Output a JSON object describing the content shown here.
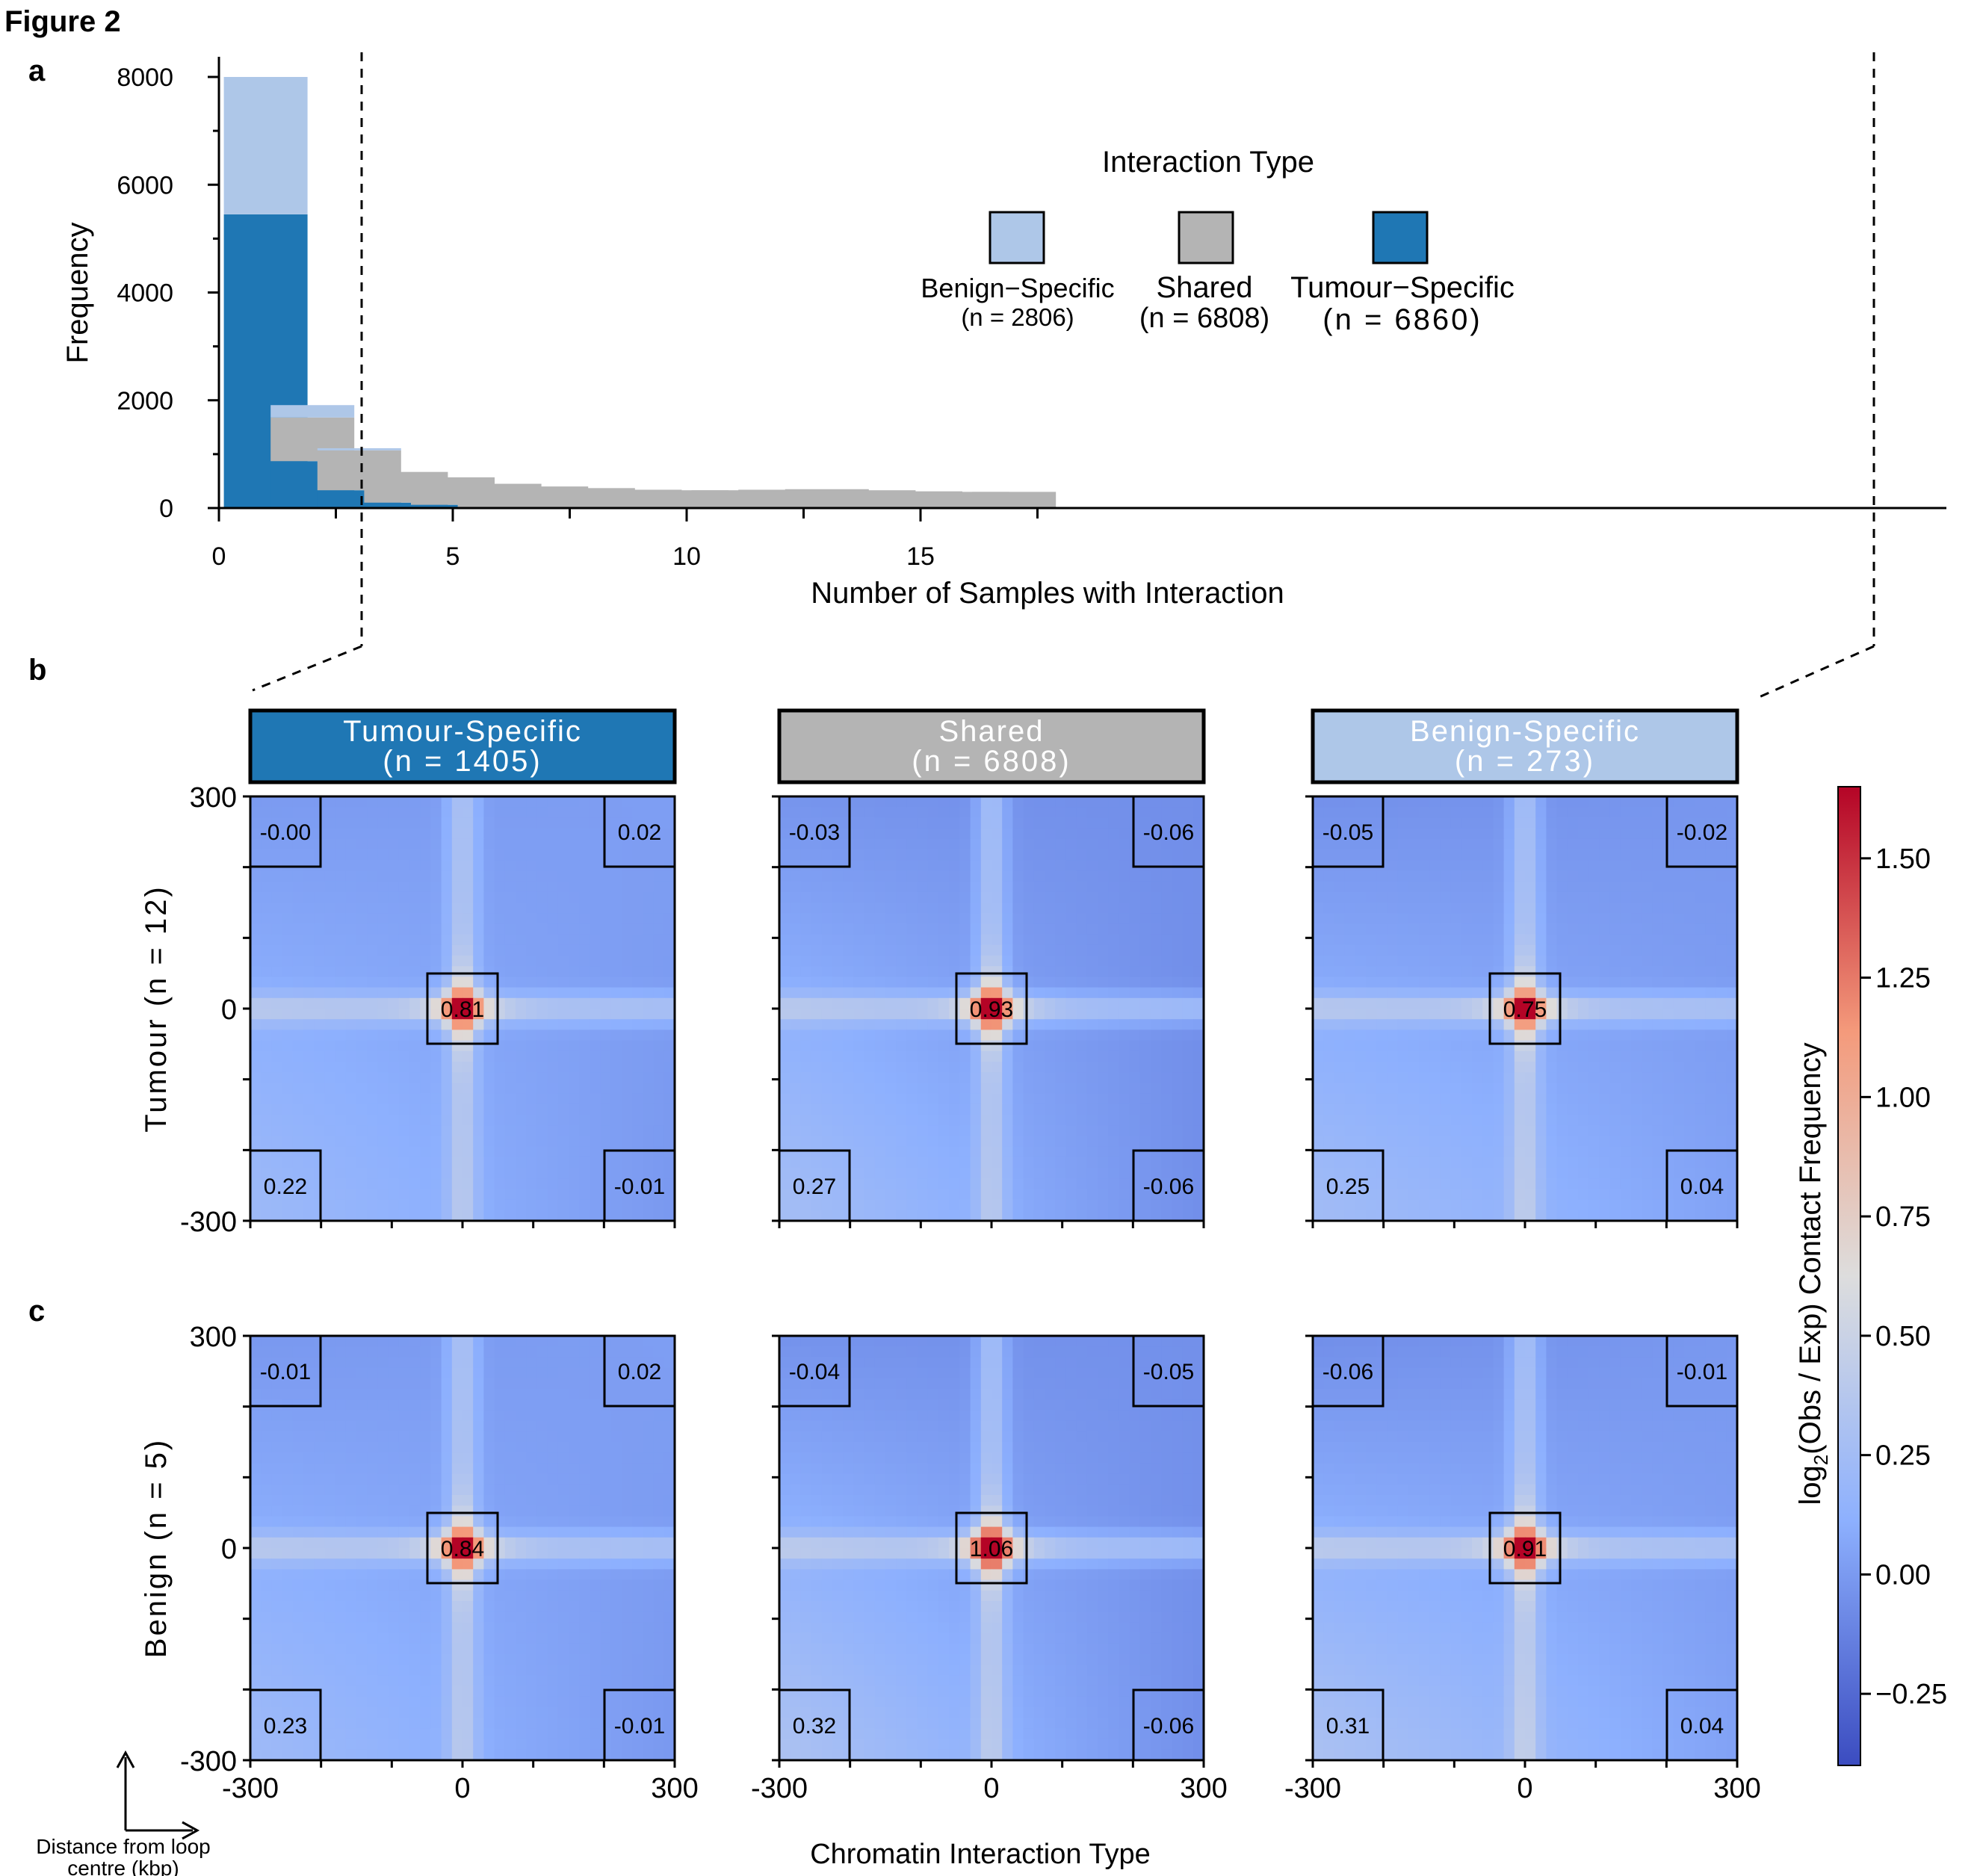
{
  "figure_title": "Figure 2",
  "panel_labels": {
    "a": "a",
    "b": "b",
    "c": "c"
  },
  "colors": {
    "benign": "#aec7e8",
    "shared": "#b4b4b4",
    "tumour": "#1f77b4",
    "heat_low": "#3b4cc0",
    "heat_mid": "#dddddd",
    "heat_high": "#b40426"
  },
  "chart_data": [
    {
      "type": "bar",
      "stacked": true,
      "xlabel": "Number of Samples with Interaction",
      "ylabel": "Frequency",
      "xlim": [
        0,
        18
      ],
      "ylim": [
        0,
        8000
      ],
      "xticks": [
        "0",
        "5",
        "10",
        "15"
      ],
      "xtick_values": [
        0,
        5,
        10,
        15
      ],
      "yticks": [
        "0",
        "2000",
        "4000",
        "6000",
        "8000"
      ],
      "ytick_values": [
        0,
        2000,
        4000,
        6000,
        8000
      ],
      "categories": [
        1,
        2,
        3,
        4,
        5,
        6,
        7,
        8,
        9,
        10,
        11,
        12,
        13,
        14,
        15,
        16,
        17
      ],
      "series": [
        {
          "name": "Tumour-Specific",
          "key": "tumour",
          "values": [
            5450,
            870,
            330,
            100,
            60,
            0,
            0,
            0,
            0,
            0,
            0,
            0,
            0,
            0,
            0,
            0,
            0
          ]
        },
        {
          "name": "Shared",
          "key": "shared",
          "values": [
            0,
            810,
            740,
            570,
            510,
            450,
            400,
            370,
            340,
            330,
            330,
            340,
            350,
            330,
            310,
            300,
            300
          ]
        },
        {
          "name": "Benign-Specific",
          "key": "benign",
          "values": [
            2550,
            230,
            40,
            0,
            0,
            0,
            0,
            0,
            0,
            0,
            0,
            0,
            0,
            0,
            0,
            0,
            0
          ]
        }
      ],
      "legend": {
        "title": "Interaction Type",
        "position": "top-right",
        "entries": [
          {
            "label": "Benign−Specific",
            "count": "(n = 2806)",
            "key": "benign"
          },
          {
            "label": "Shared",
            "count": "(n = 6808)",
            "key": "shared"
          },
          {
            "label": "Tumour−Specific",
            "count": "(n = 6860)",
            "key": "tumour"
          }
        ]
      }
    },
    {
      "type": "heatmap",
      "xlabel": "Chromatin Interaction Type",
      "axis_note": "Distance from loop centre (kbp)",
      "axis_range": [
        -300,
        300
      ],
      "ticks": [
        "-300",
        "0",
        "300"
      ],
      "colorbar": {
        "label": "log2(Obs / Exp) Contact Frequency",
        "range": [
          -0.4,
          1.65
        ],
        "ticks": [
          "−0.25",
          "0.00",
          "0.25",
          "0.50",
          "0.75",
          "1.00",
          "1.25",
          "1.50"
        ],
        "tick_values": [
          -0.25,
          0,
          0.25,
          0.5,
          0.75,
          1.0,
          1.25,
          1.5
        ]
      },
      "columns": [
        {
          "title": "Tumour-Specific",
          "subtitle": "(n = 1405)",
          "key": "tumour"
        },
        {
          "title": "Shared",
          "subtitle": "(n = 6808)",
          "key": "shared"
        },
        {
          "title": "Benign-Specific",
          "subtitle": "(n = 273)",
          "key": "benign"
        }
      ],
      "rows": [
        {
          "label": "Tumour (n = 12)",
          "panels": [
            {
              "tl": "-0.00",
              "tr": "0.02",
              "center": "0.81",
              "bl": "0.22",
              "br": "-0.01"
            },
            {
              "tl": "-0.03",
              "tr": "-0.06",
              "center": "0.93",
              "bl": "0.27",
              "br": "-0.06"
            },
            {
              "tl": "-0.05",
              "tr": "-0.02",
              "center": "0.75",
              "bl": "0.25",
              "br": "0.04"
            }
          ]
        },
        {
          "label": "Benign (n = 5)",
          "panels": [
            {
              "tl": "-0.01",
              "tr": "0.02",
              "center": "0.84",
              "bl": "0.23",
              "br": "-0.01"
            },
            {
              "tl": "-0.04",
              "tr": "-0.05",
              "center": "1.06",
              "bl": "0.32",
              "br": "-0.06"
            },
            {
              "tl": "-0.06",
              "tr": "-0.01",
              "center": "0.91",
              "bl": "0.31",
              "br": "0.04"
            }
          ]
        }
      ]
    }
  ]
}
